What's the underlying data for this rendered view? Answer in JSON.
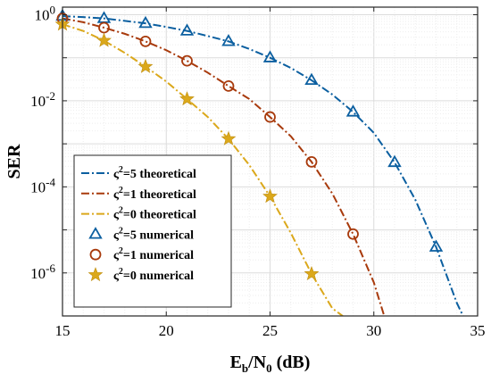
{
  "chart_data": {
    "type": "line",
    "xlabel": "Eb/N0 (dB)",
    "ylabel": "SER",
    "xlim": [
      15,
      35
    ],
    "ylim": [
      1e-07,
      1.5
    ],
    "y_scale": "log",
    "grid": true,
    "legend_position": "bottom-left",
    "x_ticks": [
      "15",
      "20",
      "25",
      "30",
      "35"
    ],
    "y_ticks": [
      {
        "value": 1,
        "label": "10^0"
      },
      {
        "value": 0.01,
        "label": "10^-2"
      },
      {
        "value": 0.0001,
        "label": "10^-4"
      },
      {
        "value": 1e-06,
        "label": "10^-6"
      }
    ],
    "series": [
      {
        "name": "ς²=5 theoretical",
        "kind": "theoretical",
        "color": "#0b5fa0",
        "x": [
          15,
          16,
          17,
          18,
          19,
          20,
          21,
          22,
          23,
          24,
          25,
          26,
          27,
          28,
          29,
          30,
          31,
          32,
          33,
          34,
          34.3
        ],
        "y": [
          0.93,
          0.88,
          0.82,
          0.72,
          0.63,
          0.52,
          0.42,
          0.32,
          0.24,
          0.16,
          0.1,
          0.058,
          0.03,
          0.014,
          0.0055,
          0.0018,
          0.00037,
          5e-05,
          4e-06,
          2e-07,
          1e-07
        ]
      },
      {
        "name": "ς²=1 theoretical",
        "kind": "theoretical",
        "color": "#a83a0c",
        "x": [
          15,
          16,
          17,
          18,
          19,
          20,
          21,
          22,
          23,
          24,
          25,
          26,
          27,
          28,
          29,
          30,
          30.5
        ],
        "y": [
          0.82,
          0.67,
          0.5,
          0.36,
          0.24,
          0.15,
          0.085,
          0.045,
          0.022,
          0.011,
          0.0042,
          0.0015,
          0.00038,
          7e-05,
          8e-06,
          6e-07,
          1e-07
        ]
      },
      {
        "name": "ς²=0 theoretical",
        "kind": "theoretical",
        "color": "#dba81b",
        "x": [
          15,
          16,
          17,
          18,
          19,
          20,
          21,
          22,
          23,
          24,
          25,
          26,
          27,
          28,
          28.5
        ],
        "y": [
          0.6,
          0.42,
          0.25,
          0.13,
          0.062,
          0.028,
          0.011,
          0.0042,
          0.0013,
          0.00032,
          6e-05,
          8.5e-06,
          9.5e-07,
          1.5e-07,
          1e-07
        ]
      },
      {
        "name": "ς²=5 numerical",
        "kind": "numerical",
        "marker": "triangle",
        "color": "#0b5fa0",
        "x": [
          15,
          17,
          19,
          21,
          23,
          25,
          27,
          29,
          31,
          33
        ],
        "y": [
          0.93,
          0.82,
          0.63,
          0.42,
          0.24,
          0.1,
          0.03,
          0.0055,
          0.00037,
          4e-06
        ]
      },
      {
        "name": "ς²=1 numerical",
        "kind": "numerical",
        "marker": "circle",
        "color": "#a83a0c",
        "x": [
          15,
          17,
          19,
          21,
          23,
          25,
          27,
          29
        ],
        "y": [
          0.82,
          0.5,
          0.24,
          0.085,
          0.022,
          0.0042,
          0.00038,
          8e-06
        ]
      },
      {
        "name": "ς²=0 numerical",
        "kind": "numerical",
        "marker": "star",
        "color": "#dba81b",
        "x": [
          15,
          17,
          19,
          21,
          23,
          25,
          27
        ],
        "y": [
          0.6,
          0.25,
          0.062,
          0.011,
          0.0013,
          6e-05,
          9.5e-07
        ]
      }
    ]
  }
}
